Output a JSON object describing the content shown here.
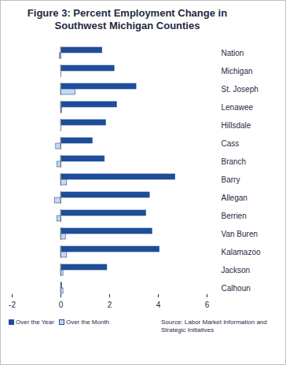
{
  "chart_data": {
    "type": "bar",
    "orientation": "horizontal",
    "title": "Figure 3: Percent Employment Change in Southwest Michigan Counties",
    "source": "Source: Labor Market Information and Strategic Initiatives",
    "categories": [
      "Nation",
      "Michigan",
      "St. Joseph",
      "Lenawee",
      "Hillsdale",
      "Cass",
      "Branch",
      "Barry",
      "Allegan",
      "Berrien",
      "Van Buren",
      "Kalamazoo",
      "Jackson",
      "Calhoun"
    ],
    "series": [
      {
        "name": "Over the Year",
        "color": "#1f4e99",
        "values": [
          1.7,
          2.2,
          3.1,
          2.3,
          1.85,
          1.3,
          1.8,
          4.7,
          3.65,
          3.5,
          3.75,
          4.05,
          1.9,
          0.05
        ]
      },
      {
        "name": "Over the Month",
        "color": "#c6d9f1",
        "values": [
          -0.05,
          0.0,
          0.6,
          0.05,
          0.0,
          -0.2,
          -0.15,
          0.25,
          -0.25,
          -0.15,
          0.2,
          0.25,
          0.1,
          0.1
        ]
      }
    ],
    "xlim": [
      -2,
      6
    ],
    "xticks": [
      -2,
      0,
      2,
      4,
      6
    ],
    "legend": "bottom",
    "grid": false
  }
}
